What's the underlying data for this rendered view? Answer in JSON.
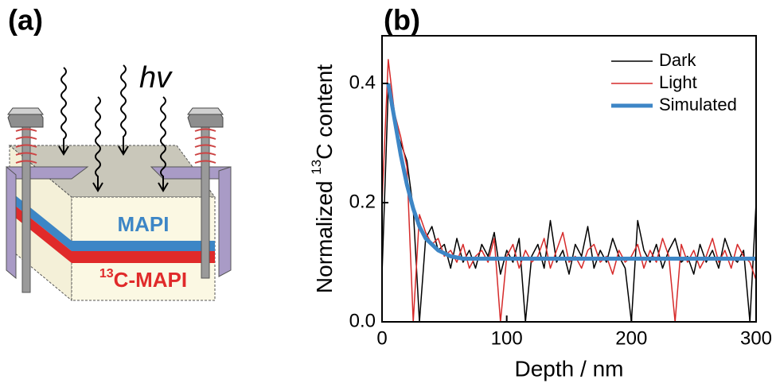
{
  "panel_a": {
    "label": "(a)",
    "photon": "hv",
    "top_layer": "MAPI",
    "bottom_layer": {
      "sup": "13",
      "text": "C-MAPI"
    }
  },
  "chart_data": {
    "type": "line",
    "panel_label": "(b)",
    "xlabel": "Depth / nm",
    "ylabel": {
      "prefix": "Normalized ",
      "sup": "13",
      "suffix": "C content"
    },
    "x": [
      0,
      5,
      10,
      15,
      20,
      25,
      30,
      35,
      40,
      45,
      50,
      55,
      60,
      65,
      70,
      75,
      80,
      85,
      90,
      95,
      100,
      105,
      110,
      115,
      120,
      125,
      130,
      135,
      140,
      145,
      150,
      155,
      160,
      165,
      170,
      175,
      180,
      185,
      190,
      195,
      200,
      205,
      210,
      215,
      220,
      225,
      230,
      235,
      240,
      245,
      250,
      255,
      260,
      265,
      270,
      275,
      280,
      285,
      290,
      295,
      300
    ],
    "series": [
      {
        "name": "Dark",
        "color": "#000000",
        "width": 1.5,
        "values": [
          0.08,
          0.39,
          0.33,
          0.3,
          0.27,
          0.19,
          0.0,
          0.14,
          0.16,
          0.12,
          0.13,
          0.09,
          0.14,
          0.1,
          0.12,
          0.09,
          0.13,
          0.11,
          0.15,
          0.08,
          0.12,
          0.1,
          0.14,
          0.0,
          0.11,
          0.13,
          0.09,
          0.17,
          0.1,
          0.12,
          0.08,
          0.13,
          0.11,
          0.16,
          0.09,
          0.12,
          0.1,
          0.14,
          0.11,
          0.09,
          0.0,
          0.17,
          0.12,
          0.1,
          0.13,
          0.09,
          0.12,
          0.14,
          0.1,
          0.11,
          0.08,
          0.13,
          0.1,
          0.12,
          0.09,
          0.14,
          0.11,
          0.1,
          0.12,
          0.0,
          0.2
        ]
      },
      {
        "name": "Light",
        "color": "#d62a2a",
        "width": 1.5,
        "values": [
          0.2,
          0.44,
          0.35,
          0.31,
          0.26,
          0.0,
          0.18,
          0.15,
          0.13,
          0.14,
          0.11,
          0.12,
          0.1,
          0.13,
          0.09,
          0.11,
          0.12,
          0.1,
          0.14,
          0.0,
          0.11,
          0.13,
          0.09,
          0.12,
          0.1,
          0.11,
          0.14,
          0.09,
          0.12,
          0.15,
          0.1,
          0.11,
          0.09,
          0.12,
          0.13,
          0.1,
          0.11,
          0.08,
          0.12,
          0.1,
          0.11,
          0.13,
          0.09,
          0.12,
          0.1,
          0.14,
          0.11,
          0.0,
          0.13,
          0.1,
          0.12,
          0.09,
          0.11,
          0.14,
          0.1,
          0.12,
          0.09,
          0.13,
          0.11,
          0.1,
          0.07
        ]
      },
      {
        "name": "Simulated",
        "color": "#3d86c6",
        "width": 5,
        "values": [
          null,
          0.4,
          0.34,
          0.28,
          0.23,
          0.19,
          0.16,
          0.14,
          0.13,
          0.12,
          0.115,
          0.11,
          0.108,
          0.106,
          0.106,
          0.106,
          0.106,
          0.106,
          0.106,
          0.106,
          0.106,
          0.106,
          0.106,
          0.106,
          0.106,
          0.106,
          0.106,
          0.106,
          0.106,
          0.106,
          0.106,
          0.106,
          0.106,
          0.106,
          0.106,
          0.106,
          0.106,
          0.106,
          0.106,
          0.106,
          0.106,
          0.106,
          0.106,
          0.106,
          0.106,
          0.106,
          0.106,
          0.106,
          0.106,
          0.106,
          0.106,
          0.106,
          0.106,
          0.106,
          0.106,
          0.106,
          0.106,
          0.106,
          0.106,
          0.106,
          0.106
        ]
      }
    ],
    "xlim": [
      0,
      300
    ],
    "xticks": [
      0,
      100,
      200,
      300
    ],
    "ylim": [
      0,
      0.48
    ],
    "yticks": [
      {
        "value": 0,
        "label": "0.0"
      },
      0.2,
      0.4
    ],
    "legend": "upper right"
  }
}
